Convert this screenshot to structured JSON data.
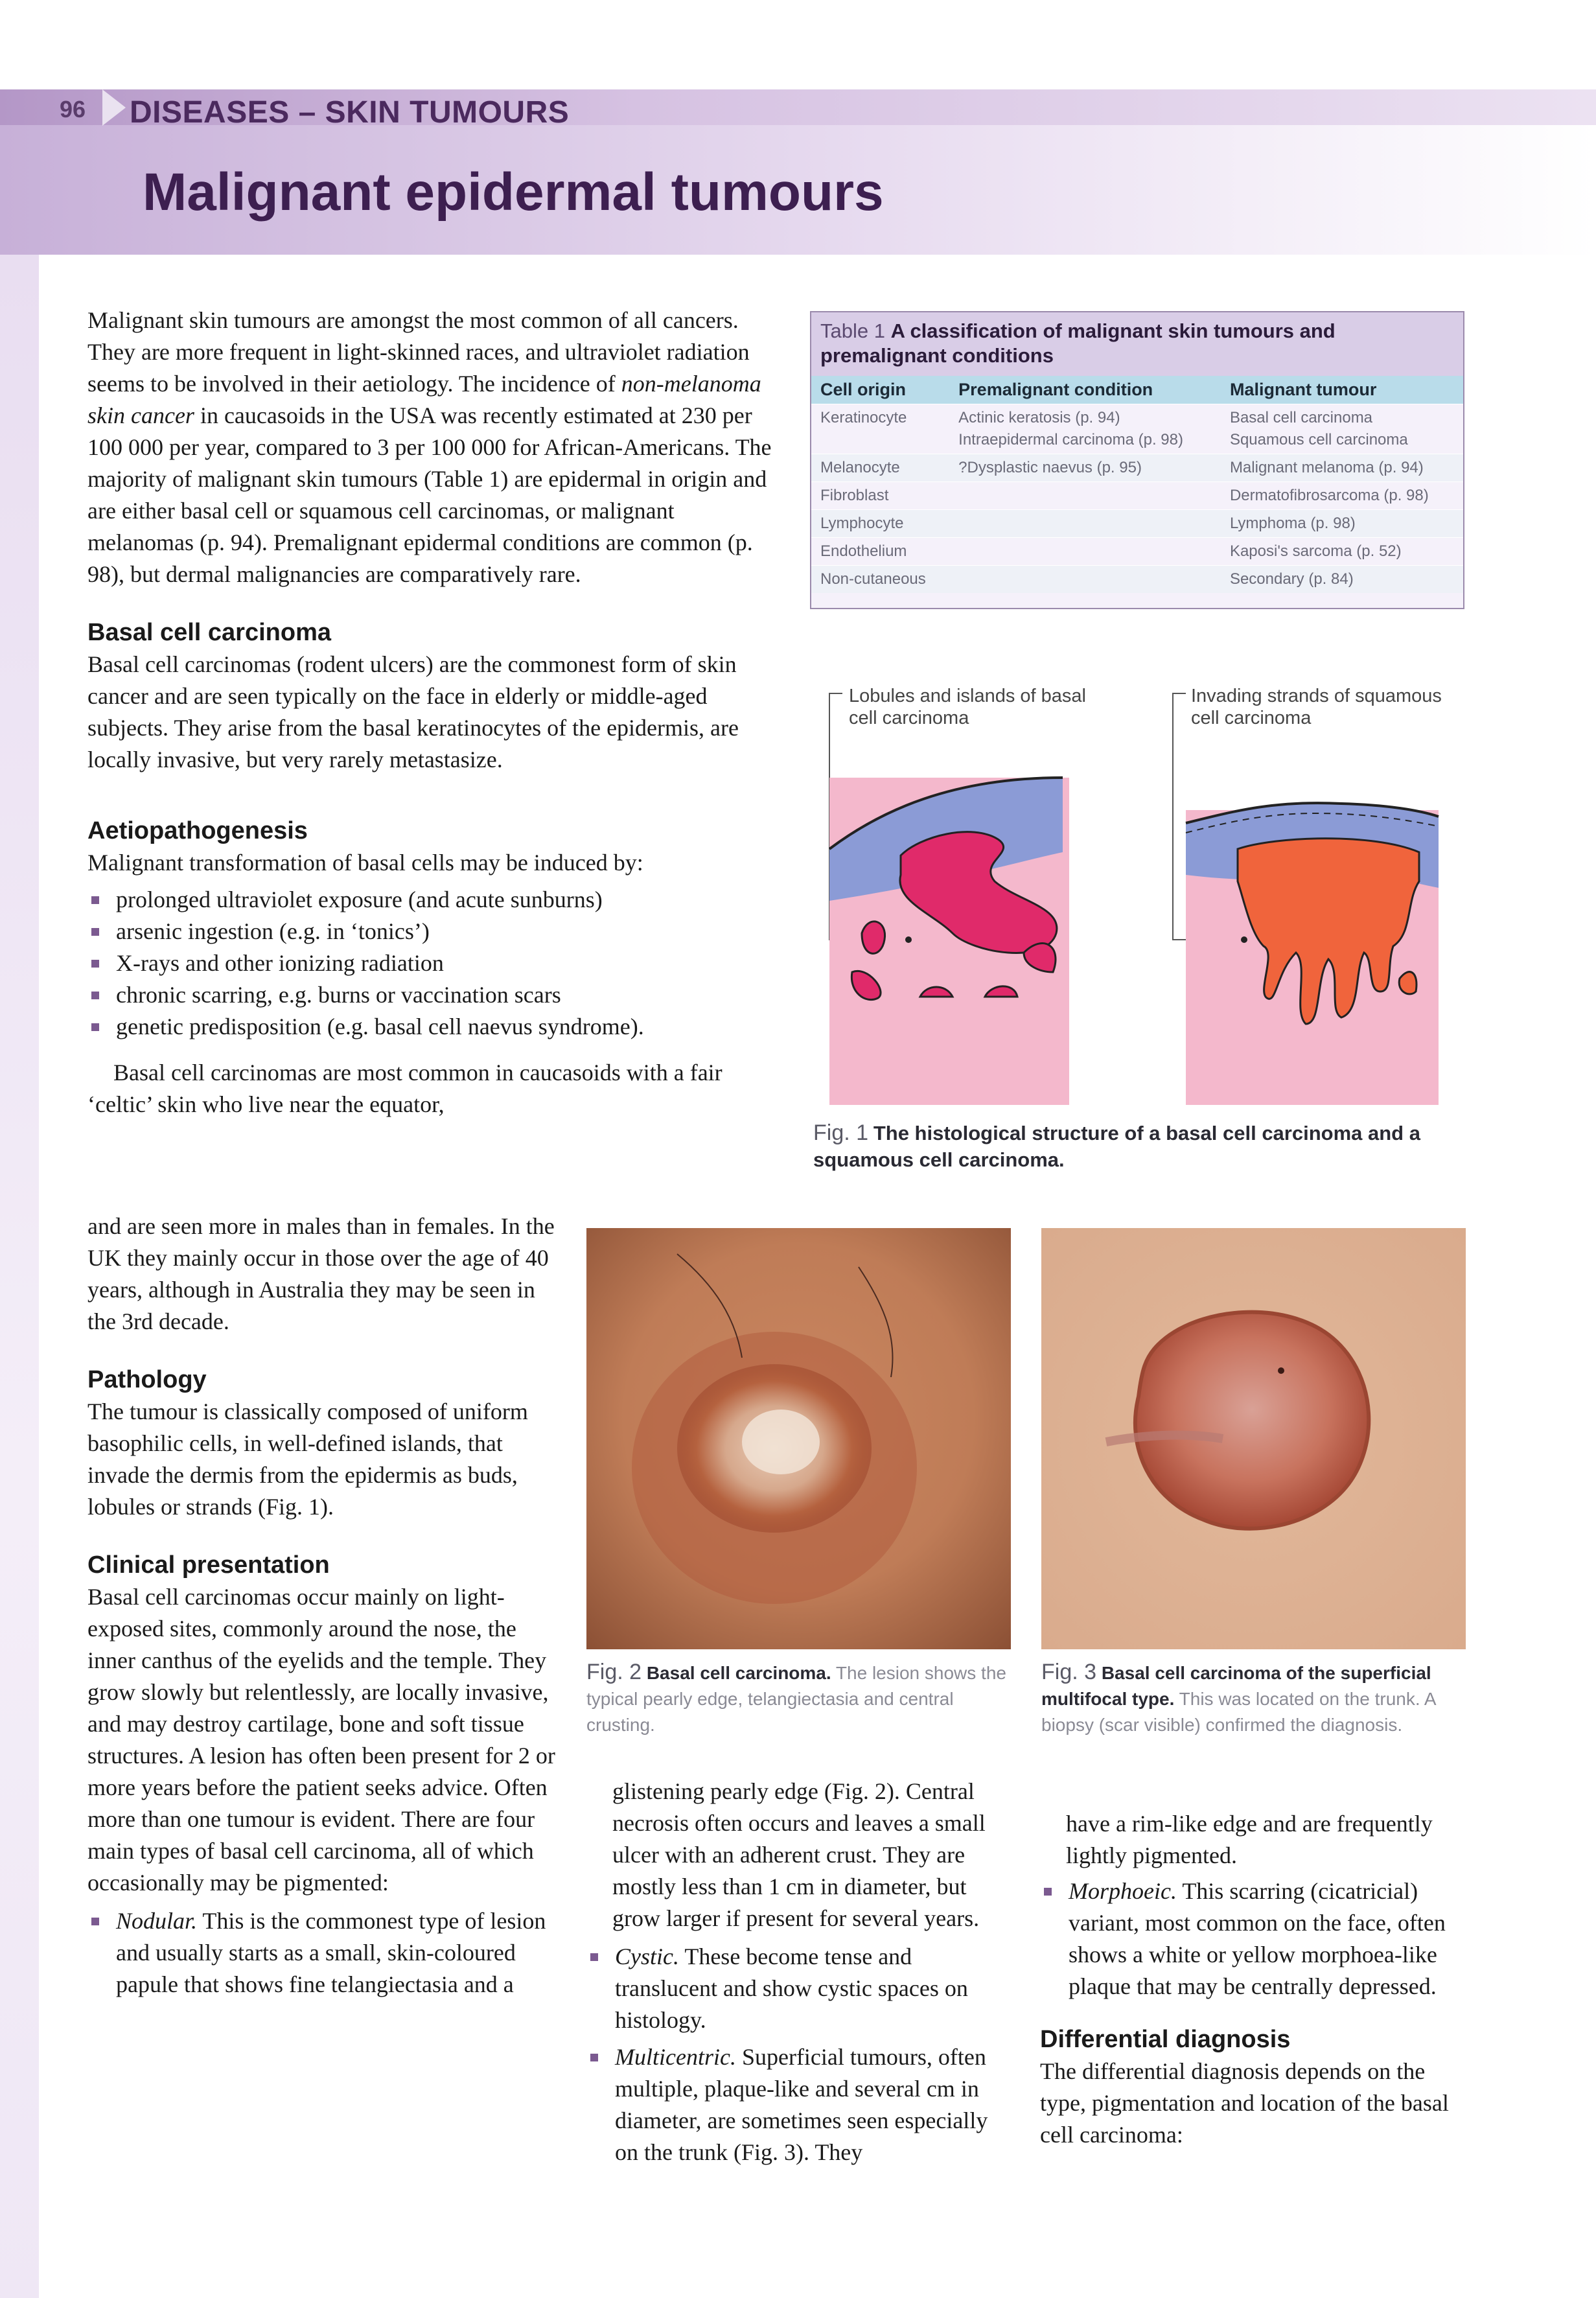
{
  "header": {
    "page_number": "96",
    "section": "DISEASES – SKIN TUMOURS",
    "title": "Malignant epidermal tumours"
  },
  "intro": {
    "p1_a": "Malignant skin tumours are amongst the most common of all cancers. They are more frequent in light-skinned races, and ultraviolet radiation seems to be involved in their aetiology. The incidence of ",
    "p1_em": "non-melanoma skin cancer",
    "p1_b": " in caucasoids in the USA was recently estimated at 230 per 100 000 per year, compared to 3 per 100 000 for African-Americans. The majority of malignant skin tumours (Table 1) are epidermal in origin and are either basal cell or squamous cell carcinomas, or malignant melanomas (p. 94). Premalignant epidermal conditions are common (p. 98), but dermal malignancies are comparatively rare."
  },
  "bcc": {
    "heading": "Basal cell carcinoma",
    "text": "Basal cell carcinomas (rodent ulcers) are the commonest form of skin cancer and are seen typically on the face in elderly or middle-aged subjects. They arise from the basal keratinocytes of the epidermis, are locally invasive, but very rarely metastasize."
  },
  "aetio": {
    "heading": "Aetiopathogenesis",
    "lead": "Malignant transformation of basal cells may be induced by:",
    "items": [
      "prolonged ultraviolet exposure (and acute sunburns)",
      "arsenic ingestion (e.g. in ‘tonics’)",
      "X-rays and other ionizing radiation",
      "chronic scarring, e.g. burns or vaccination scars",
      "genetic predisposition (e.g. basal cell naevus syndrome)."
    ],
    "para_full": "Basal cell carcinomas are most common in caucasoids with a fair ‘celtic’ skin who live near the equator,",
    "para_narrow": "and are seen more in males than in females. In the UK they mainly occur in those over the age of 40 years, although in Australia they may be seen in the 3rd decade."
  },
  "pathology": {
    "heading": "Pathology",
    "text": "The tumour is classically composed of uniform basophilic cells, in well-defined islands, that invade the dermis from the epidermis as buds, lobules or strands (Fig. 1)."
  },
  "clinical": {
    "heading": "Clinical presentation",
    "text": "Basal cell carcinomas occur mainly on light-exposed sites, commonly around the nose, the inner canthus of the eyelids and the temple. They grow slowly but relentlessly, are locally invasive, and may destroy cartilage, bone and soft tissue structures. A lesion has often been present for 2 or more years before the patient seeks advice. Often more than one tumour is evident. There are four main types of basal cell carcinoma, all of which occasionally may be pigmented:",
    "nodular_label": "Nodular.",
    "nodular_text": " This is the commonest type of lesion and usually starts as a small, skin-coloured papule that shows fine telangiectasia and a",
    "mid_cont": "glistening pearly edge (Fig. 2). Central necrosis often occurs and leaves a small ulcer with an adherent crust. They are mostly less than 1 cm in diameter, but grow larger if present for several years.",
    "cystic_label": "Cystic.",
    "cystic_text": " These become tense and translucent and show cystic spaces on histology.",
    "multi_label": "Multicentric.",
    "multi_text": " Superficial tumours, often multiple, plaque-like and several cm in diameter, are sometimes seen especially on the trunk (Fig. 3). They",
    "right_cont": "have a rim-like edge and are frequently lightly pigmented.",
    "morph_label": "Morphoeic.",
    "morph_text": " This scarring (cicatricial) variant, most common on the face, often shows a white or yellow morphoea-like plaque that may be centrally depressed."
  },
  "differential": {
    "heading": "Differential diagnosis",
    "text": "The differential diagnosis depends on the type, pigmentation and location of the basal cell carcinoma:"
  },
  "table1": {
    "label": "Table 1",
    "caption": "A classification of malignant skin tumours and premalignant conditions",
    "headers": [
      "Cell origin",
      "Premalignant condition",
      "Malignant tumour"
    ],
    "rows": [
      [
        "Keratinocyte",
        "Actinic keratosis (p. 94)\nIntraepidermal carcinoma (p. 98)",
        "Basal cell carcinoma\nSquamous cell carcinoma"
      ],
      [
        "Melanocyte",
        "?Dysplastic naevus (p. 95)",
        "Malignant melanoma (p. 94)"
      ],
      [
        "Fibroblast",
        "",
        "Dermatofibrosarcoma (p. 98)"
      ],
      [
        "Lymphocyte",
        "",
        "Lymphoma (p. 98)"
      ],
      [
        "Endothelium",
        "",
        "Kaposi's sarcoma (p. 52)"
      ],
      [
        "Non-cutaneous",
        "",
        "Secondary (p. 84)"
      ]
    ]
  },
  "fig1": {
    "label_left": "Lobules and islands of basal cell carcinoma",
    "label_right": "Invading strands of squamous cell carcinoma",
    "num": "Fig. 1",
    "caption": "The histological structure of a basal cell carcinoma and a squamous cell carcinoma."
  },
  "fig2": {
    "num": "Fig. 2",
    "title": "Basal cell carcinoma.",
    "caption": " The lesion shows the typical pearly edge, telangiectasia and central crusting."
  },
  "fig3": {
    "num": "Fig. 3",
    "title": "Basal cell carcinoma of the superficial multifocal type.",
    "caption": " This was located on the trunk. A biopsy (scar visible) confirmed the diagnosis."
  },
  "colors": {
    "header_band": "#b497c7",
    "title_text": "#3d1f50",
    "table_header": "#b9dcea",
    "epidermis_blue": "#8b9bd6",
    "dermis_pink": "#f4b8cc",
    "bcc_magenta": "#e02a6a",
    "scc_orange": "#f0643c"
  }
}
